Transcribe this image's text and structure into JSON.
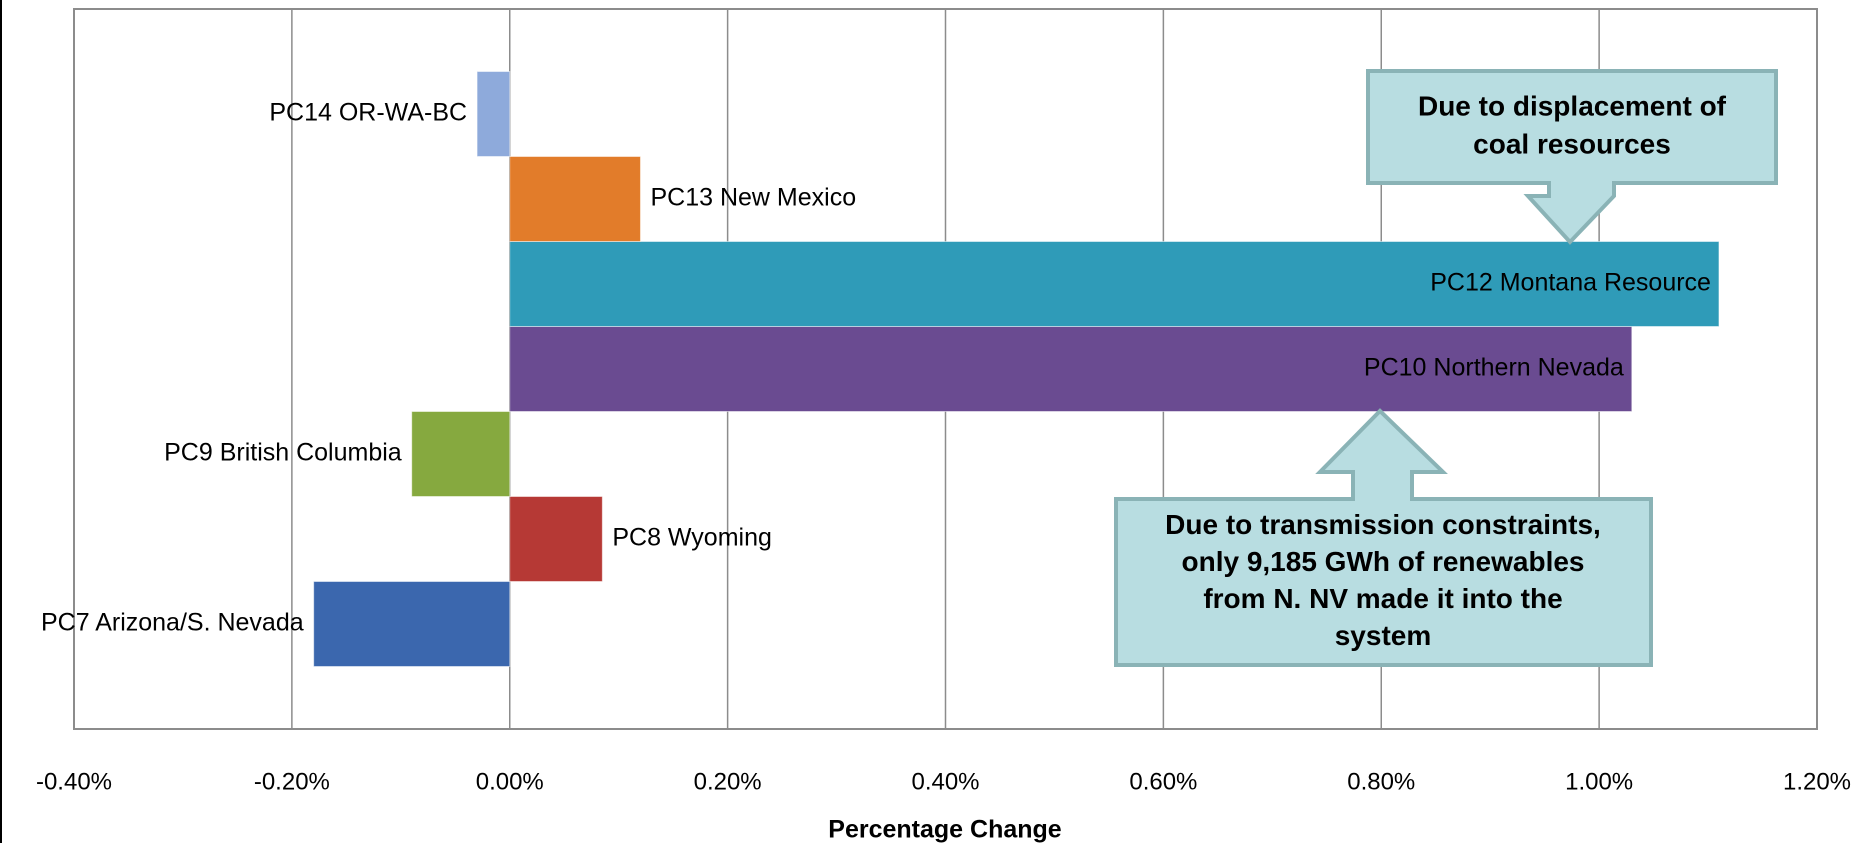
{
  "chart_data": {
    "type": "bar",
    "orientation": "horizontal",
    "x_label": "Percentage Change",
    "categories": [
      "PC7 Arizona/S. Nevada",
      "PC8 Wyoming",
      "PC9 British Columbia",
      "PC10 Northern Nevada",
      "PC12 Montana Resource",
      "PC13 New Mexico",
      "PC14 OR-WA-BC"
    ],
    "values": [
      -0.18,
      0.085,
      -0.09,
      1.03,
      1.11,
      0.12,
      -0.03
    ],
    "colors": [
      "#3b67ae",
      "#b63935",
      "#86a93f",
      "#6a4b91",
      "#2f9bb8",
      "#e27c2a",
      "#8eaadb"
    ],
    "xlim": [
      -0.4,
      1.2
    ],
    "xticks": [
      {
        "value": -0.4,
        "label": "-0.40%"
      },
      {
        "value": -0.2,
        "label": "-0.20%"
      },
      {
        "value": 0,
        "label": "0.00%"
      },
      {
        "value": 0.2,
        "label": "0.20%"
      },
      {
        "value": 0.4,
        "label": "0.40%"
      },
      {
        "value": 0.6,
        "label": "0.60%"
      },
      {
        "value": 0.8,
        "label": "0.80%"
      },
      {
        "value": 1.0,
        "label": "1.00%"
      },
      {
        "value": 1.2,
        "label": "1.20%"
      }
    ],
    "grid": true,
    "annotations": [
      {
        "lines": [
          "Due to displacement of",
          "coal resources"
        ]
      },
      {
        "lines": [
          "Due to transmission constraints,",
          "only 9,185 GWh of renewables",
          "from N. NV made it into the",
          "system"
        ]
      }
    ]
  }
}
